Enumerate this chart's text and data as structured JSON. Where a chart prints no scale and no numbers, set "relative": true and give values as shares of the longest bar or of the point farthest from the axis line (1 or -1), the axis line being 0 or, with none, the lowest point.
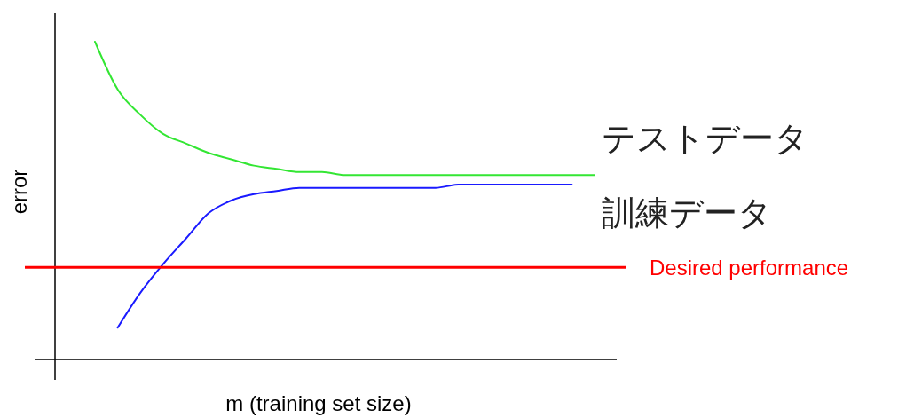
{
  "chart_data": {
    "type": "line",
    "relative": true,
    "xlabel": "m (training set size)",
    "ylabel": "error",
    "legend": false,
    "categories": [
      null,
      null,
      null,
      null,
      null,
      null,
      null,
      null,
      null,
      null,
      null,
      null,
      null,
      null,
      null,
      null,
      null,
      null,
      null,
      null,
      null,
      null,
      null
    ],
    "series": [
      {
        "name": "テストデータ",
        "color": "#33e633",
        "values": [
          1.0,
          0.85,
          0.77,
          0.71,
          0.68,
          0.65,
          0.63,
          0.61,
          0.6,
          0.59,
          0.59,
          0.58,
          0.58,
          0.58,
          0.58,
          0.58,
          0.58,
          0.58,
          0.58,
          0.58,
          0.58,
          0.58,
          0.58
        ]
      },
      {
        "name": "訓練データ",
        "color": "#1a1aff",
        "values": [
          null,
          0.1,
          0.21,
          0.3,
          0.38,
          0.46,
          0.5,
          0.52,
          0.53,
          0.54,
          0.54,
          0.54,
          0.54,
          0.54,
          0.54,
          0.54,
          0.55,
          0.55,
          0.55,
          0.55,
          0.55,
          0.55,
          null
        ]
      }
    ],
    "ref_lines": [
      {
        "axis": "y",
        "value": 0.29,
        "label": "Desired performance",
        "color": "#ff0000"
      }
    ]
  }
}
